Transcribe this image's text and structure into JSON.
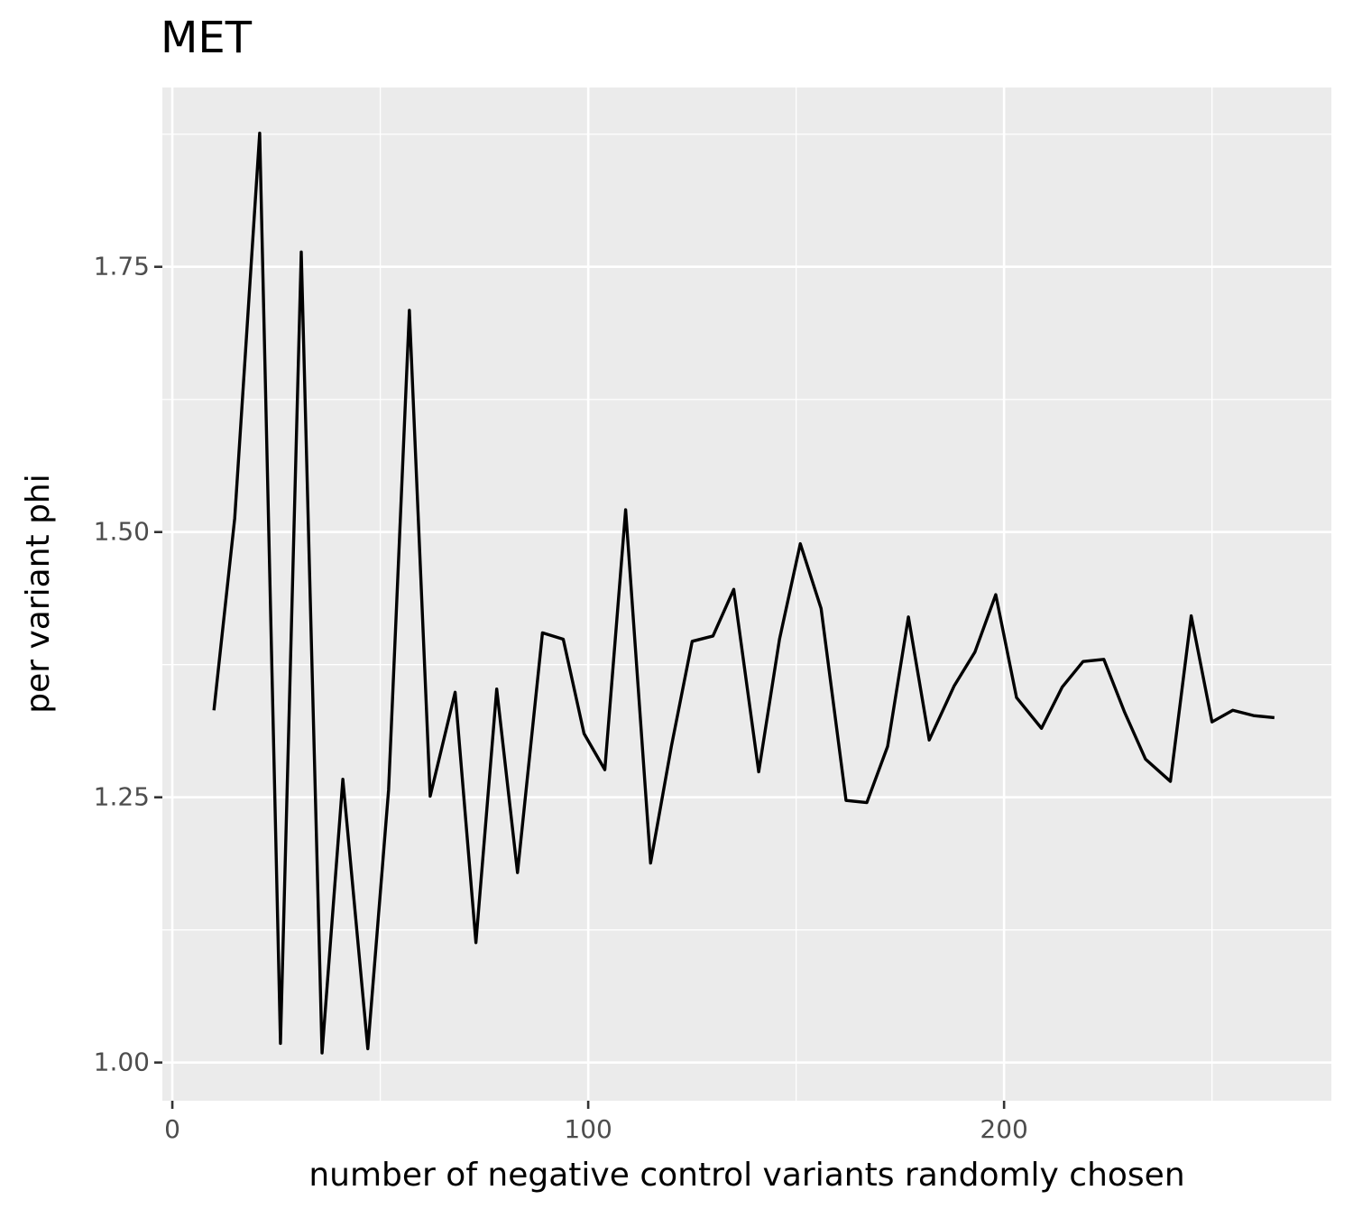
{
  "chart_data": {
    "type": "line",
    "title": "MET",
    "x_label": "number of negative control variants randomly chosen",
    "y_label": "per variant phi",
    "x": [
      10,
      15,
      21,
      26,
      31,
      36,
      41,
      47,
      52,
      57,
      62,
      68,
      73,
      78,
      83,
      89,
      94,
      99,
      104,
      109,
      115,
      120,
      125,
      130,
      135,
      141,
      146,
      151,
      156,
      162,
      167,
      172,
      177,
      182,
      188,
      193,
      198,
      203,
      209,
      214,
      219,
      224,
      229,
      234,
      240,
      245,
      250,
      255,
      260,
      265
    ],
    "series": [
      {
        "name": "per variant phi",
        "color": "#000000",
        "values": [
          1.332,
          1.513,
          1.876,
          1.018,
          1.764,
          1.009,
          1.267,
          1.013,
          1.257,
          1.709,
          1.251,
          1.349,
          1.113,
          1.352,
          1.179,
          1.405,
          1.399,
          1.31,
          1.276,
          1.521,
          1.188,
          1.298,
          1.397,
          1.402,
          1.446,
          1.274,
          1.399,
          1.489,
          1.428,
          1.247,
          1.245,
          1.298,
          1.42,
          1.304,
          1.355,
          1.387,
          1.441,
          1.344,
          1.315,
          1.354,
          1.378,
          1.38,
          1.33,
          1.286,
          1.265,
          1.421,
          1.321,
          1.332,
          1.327,
          1.325
        ]
      }
    ],
    "xlim": [
      -2.4,
      278.7
    ],
    "ylim": [
      0.964,
      1.919
    ],
    "xticks": [
      0,
      100,
      200
    ],
    "yticks": [
      {
        "value": 1,
        "label": "1.00"
      },
      1.25,
      {
        "value": 1.5,
        "label": "1.50"
      },
      1.75
    ],
    "minor_xticks": [
      50,
      150,
      250
    ],
    "minor_yticks": [
      1.125,
      1.375,
      1.625,
      1.875
    ],
    "grid": true
  }
}
